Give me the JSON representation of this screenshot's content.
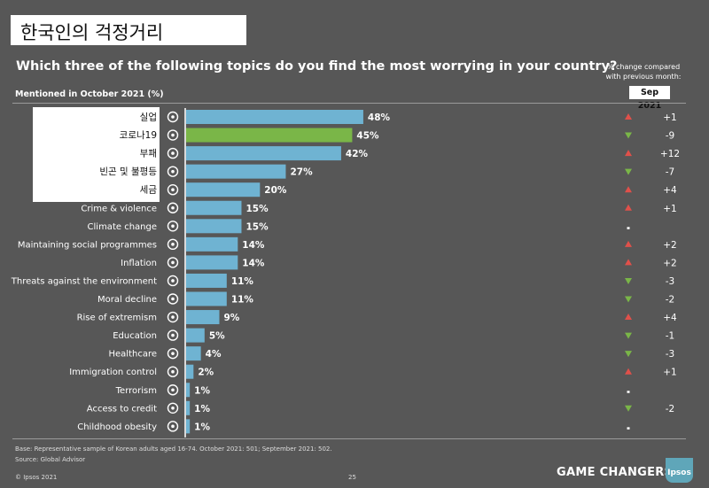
{
  "page": {
    "korean_title": "한국인의 걱정거리",
    "question": "Which three of the following topics do you find the most worrying in your country?",
    "mentioned_label": "Mentioned in October 2021 (%)",
    "change_header_line1": "% change compared",
    "change_header_line2": "with previous month:",
    "change_column_label": "Sep 2021",
    "base_note": "Base: Representative sample of Korean adults aged 16-74. October 2021: 501; September 2021: 502.",
    "source_note": "Source: Global Advisor",
    "copyright": "© Ipsos 2021",
    "page_number": "25",
    "brand": "GAME CHANGERS",
    "logo_text": "Ipsos"
  },
  "colors": {
    "background": "#575757",
    "bar": "#6fb3d2",
    "bar_highlight": "#7ab648",
    "up": "#e0504a",
    "down": "#7ab648",
    "flat": "#ffffff"
  },
  "chart_data": {
    "type": "bar",
    "orientation": "horizontal",
    "title": "Which three of the following topics do you find the most worrying in your country?",
    "xlabel": "Mentioned in October 2021 (%)",
    "xlim": [
      0,
      50
    ],
    "categories": [
      "실업",
      "코로나19",
      "부패",
      "빈곤 및 불평등",
      "세금",
      "Crime & violence",
      "Climate change",
      "Maintaining social programmes",
      "Inflation",
      "Threats against the environment",
      "Moral decline",
      "Rise of extremism",
      "Education",
      "Healthcare",
      "Immigration control",
      "Terrorism",
      "Access to credit",
      "Childhood obesity"
    ],
    "values": [
      48,
      45,
      42,
      27,
      20,
      15,
      15,
      14,
      14,
      11,
      11,
      9,
      5,
      4,
      2,
      1,
      1,
      1
    ],
    "value_labels": [
      "48%",
      "45%",
      "42%",
      "27%",
      "20%",
      "15%",
      "15%",
      "14%",
      "14%",
      "11%",
      "11%",
      "9%",
      "5%",
      "4%",
      "2%",
      "1%",
      "1%",
      "1%"
    ],
    "highlight_index": 1,
    "change_vs_sep_2021": [
      1,
      -9,
      12,
      -7,
      4,
      1,
      0,
      2,
      2,
      -3,
      -2,
      4,
      -1,
      -3,
      1,
      0,
      -2,
      0
    ],
    "change_labels": [
      "+1",
      "-9",
      "+12",
      "-7",
      "+4",
      "+1",
      "-",
      "+2",
      "+2",
      "-3",
      "-2",
      "+4",
      "-1",
      "-3",
      "+1",
      "-",
      "-2",
      "-"
    ],
    "icons": [
      "unemployment-icon",
      "coronavirus-icon",
      "corruption-icon",
      "poverty-icon",
      "taxes-icon",
      "crime-icon",
      "climate-icon",
      "social-programmes-icon",
      "inflation-icon",
      "environment-icon",
      "moral-decline-icon",
      "extremism-icon",
      "education-icon",
      "healthcare-icon",
      "immigration-icon",
      "terrorism-icon",
      "credit-icon",
      "obesity-icon"
    ]
  }
}
